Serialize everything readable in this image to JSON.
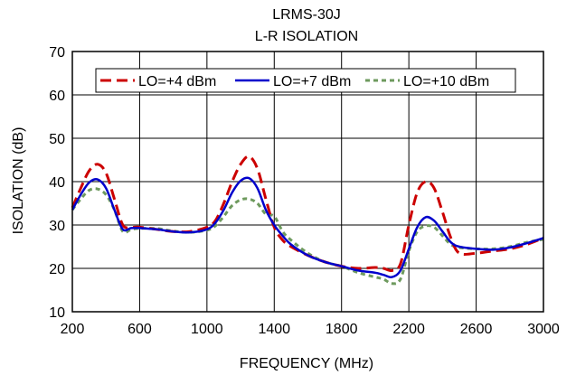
{
  "chart_data": {
    "type": "line",
    "title": "LRMS-30J",
    "subtitle": "L-R ISOLATION",
    "xlabel": "FREQUENCY (MHz)",
    "ylabel": "ISOLATION (dB)",
    "xlim": [
      200,
      3000
    ],
    "ylim": [
      10,
      70
    ],
    "xticks": [
      200,
      600,
      1000,
      1400,
      1800,
      2200,
      2600,
      3000
    ],
    "yticks": [
      10,
      20,
      30,
      40,
      50,
      60,
      70
    ],
    "grid": true,
    "legend_position": "top",
    "series": [
      {
        "name": "LO=+4 dBm",
        "color": "#cc0000",
        "style": "dashed",
        "x": [
          200,
          250,
          300,
          350,
          400,
          450,
          500,
          550,
          600,
          700,
          800,
          900,
          1000,
          1050,
          1100,
          1150,
          1200,
          1250,
          1300,
          1350,
          1400,
          1450,
          1500,
          1600,
          1700,
          1800,
          1900,
          2000,
          2050,
          2100,
          2150,
          2200,
          2250,
          2300,
          2350,
          2400,
          2450,
          2500,
          2600,
          2700,
          2800,
          2900,
          3000
        ],
        "y": [
          34,
          38.5,
          42.5,
          44,
          42,
          36,
          30,
          29.5,
          29.5,
          29,
          28.5,
          28.5,
          29.5,
          31,
          35,
          40,
          44,
          45.8,
          43,
          36,
          29.5,
          26.5,
          25,
          23,
          21.5,
          20.5,
          20,
          20.2,
          20,
          19.5,
          21,
          30,
          37.5,
          40,
          38.5,
          33,
          27,
          23.5,
          23.5,
          24,
          24.5,
          25.5,
          27
        ]
      },
      {
        "name": "LO=+7 dBm",
        "color": "#0000cc",
        "style": "solid",
        "x": [
          200,
          250,
          300,
          350,
          400,
          450,
          500,
          550,
          600,
          700,
          800,
          900,
          1000,
          1050,
          1100,
          1150,
          1200,
          1250,
          1300,
          1350,
          1400,
          1450,
          1500,
          1600,
          1700,
          1800,
          1900,
          2000,
          2050,
          2100,
          2150,
          2200,
          2250,
          2300,
          2350,
          2400,
          2450,
          2500,
          2600,
          2700,
          2800,
          2900,
          3000
        ],
        "y": [
          33.5,
          37,
          39.8,
          40.5,
          38.5,
          33.5,
          29,
          29.3,
          29.3,
          29,
          28.5,
          28.3,
          29,
          30.5,
          33.5,
          37.5,
          40.2,
          40.8,
          38.5,
          33.5,
          30,
          27.5,
          25.5,
          23,
          21.5,
          20.5,
          19.5,
          19,
          18.5,
          18,
          19.5,
          24.5,
          29.5,
          31.8,
          31,
          28.5,
          26,
          25,
          24.5,
          24.3,
          24.8,
          25.8,
          27
        ]
      },
      {
        "name": "LO=+10 dBm",
        "color": "#6e9a5e",
        "style": "dotted",
        "x": [
          200,
          250,
          300,
          350,
          400,
          450,
          500,
          550,
          600,
          700,
          800,
          900,
          1000,
          1050,
          1100,
          1150,
          1200,
          1250,
          1300,
          1350,
          1400,
          1450,
          1500,
          1600,
          1700,
          1800,
          1900,
          2000,
          2050,
          2100,
          2150,
          2200,
          2250,
          2300,
          2350,
          2400,
          2450,
          2500,
          2600,
          2700,
          2800,
          2900,
          3000
        ],
        "y": [
          33.5,
          36,
          38,
          38.3,
          37,
          33.5,
          28.5,
          29,
          29.2,
          29.2,
          28.6,
          28.3,
          28.8,
          29.8,
          32,
          34.5,
          35.8,
          36,
          35,
          32.5,
          32,
          28.5,
          26.5,
          23.5,
          21.5,
          20.5,
          19,
          18,
          17.5,
          16.5,
          17.5,
          24,
          28.5,
          29.8,
          29.5,
          27.5,
          25.5,
          24.8,
          24.5,
          24.5,
          25,
          26,
          26.7
        ]
      }
    ]
  }
}
